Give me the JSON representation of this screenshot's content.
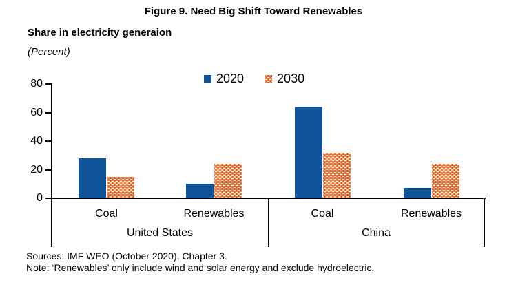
{
  "figure": {
    "title": "Figure 9. Need Big Shift Toward Renewables",
    "subtitle": "Share in electricity generaion",
    "unit_label": "(Percent)",
    "sources": "Sources: IMF WEO (October 2020), Chapter 3.",
    "note": "Note: ‘Renewables’ only include wind and solar energy and exclude hydroelectric."
  },
  "colors": {
    "bar_2020": "#0F5499",
    "bar_2030": "#E05C16",
    "axis": "#000000",
    "background": "#FFFFFF"
  },
  "chart_data": {
    "type": "bar",
    "title": "Figure 9. Need Big Shift Toward Renewables",
    "ylabel": "(Percent)",
    "groups": [
      {
        "label": "United States",
        "categories": [
          "Coal",
          "Renewables"
        ]
      },
      {
        "label": "China",
        "categories": [
          "Coal",
          "Renewables"
        ]
      }
    ],
    "value_order": [
      "United States Coal",
      "United States Renewables",
      "China Coal",
      "China Renewables"
    ],
    "series": [
      {
        "name": "2020",
        "color": "#0F5499",
        "fill": "solid",
        "values": [
          28,
          10,
          64,
          7
        ]
      },
      {
        "name": "2030",
        "color": "#E05C16",
        "fill": "white-dash-pattern",
        "values": [
          15,
          24,
          32,
          24
        ]
      }
    ],
    "ylim": [
      0,
      80
    ],
    "ytick_step": 20,
    "grid": false,
    "legend_position": "top-center"
  }
}
